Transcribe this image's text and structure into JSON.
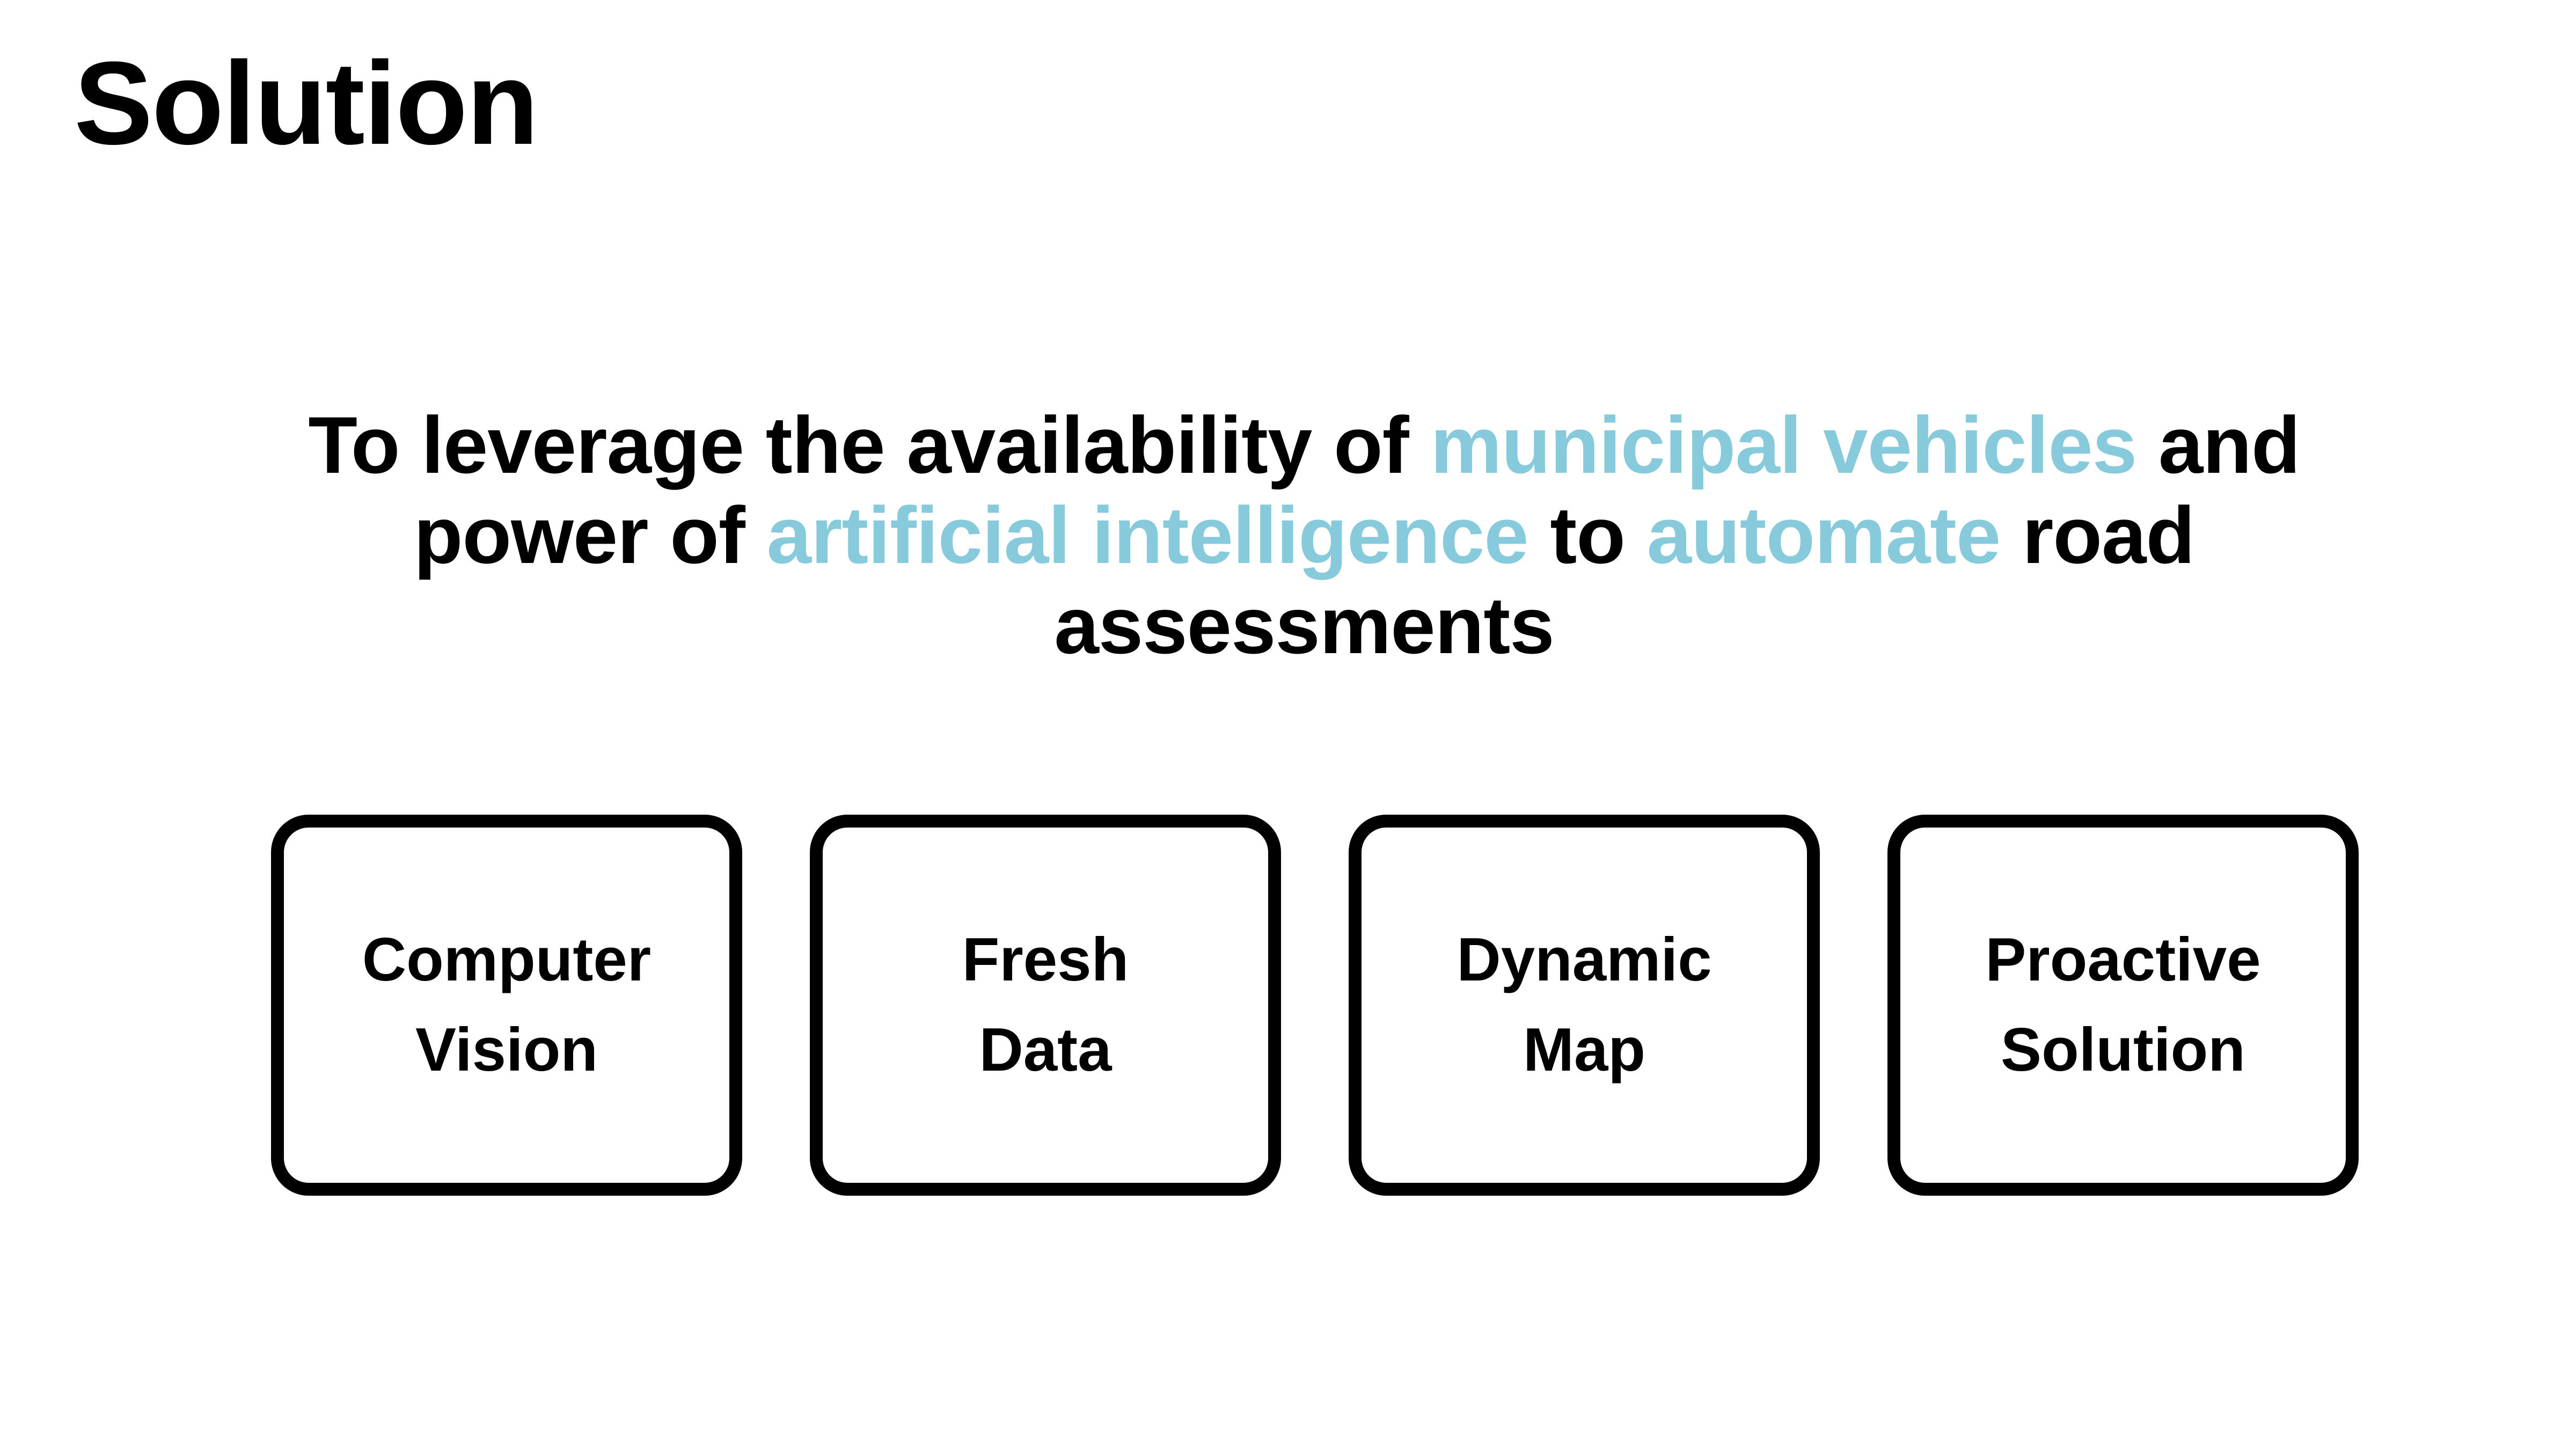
{
  "title": "Solution",
  "statement": {
    "t1": "To leverage the availability of ",
    "h1": "municipal vehicles",
    "t2": " and power of ",
    "h2": "artificial intelligence",
    "t3": " to ",
    "h3": "automate",
    "t4": " road assessments"
  },
  "cards": [
    {
      "label": "Computer\nVision"
    },
    {
      "label": "Fresh\nData"
    },
    {
      "label": "Dynamic\nMap"
    },
    {
      "label": "Proactive\nSolution"
    }
  ],
  "colors": {
    "accent": "#86cadb",
    "text": "#000000",
    "background": "#ffffff"
  }
}
